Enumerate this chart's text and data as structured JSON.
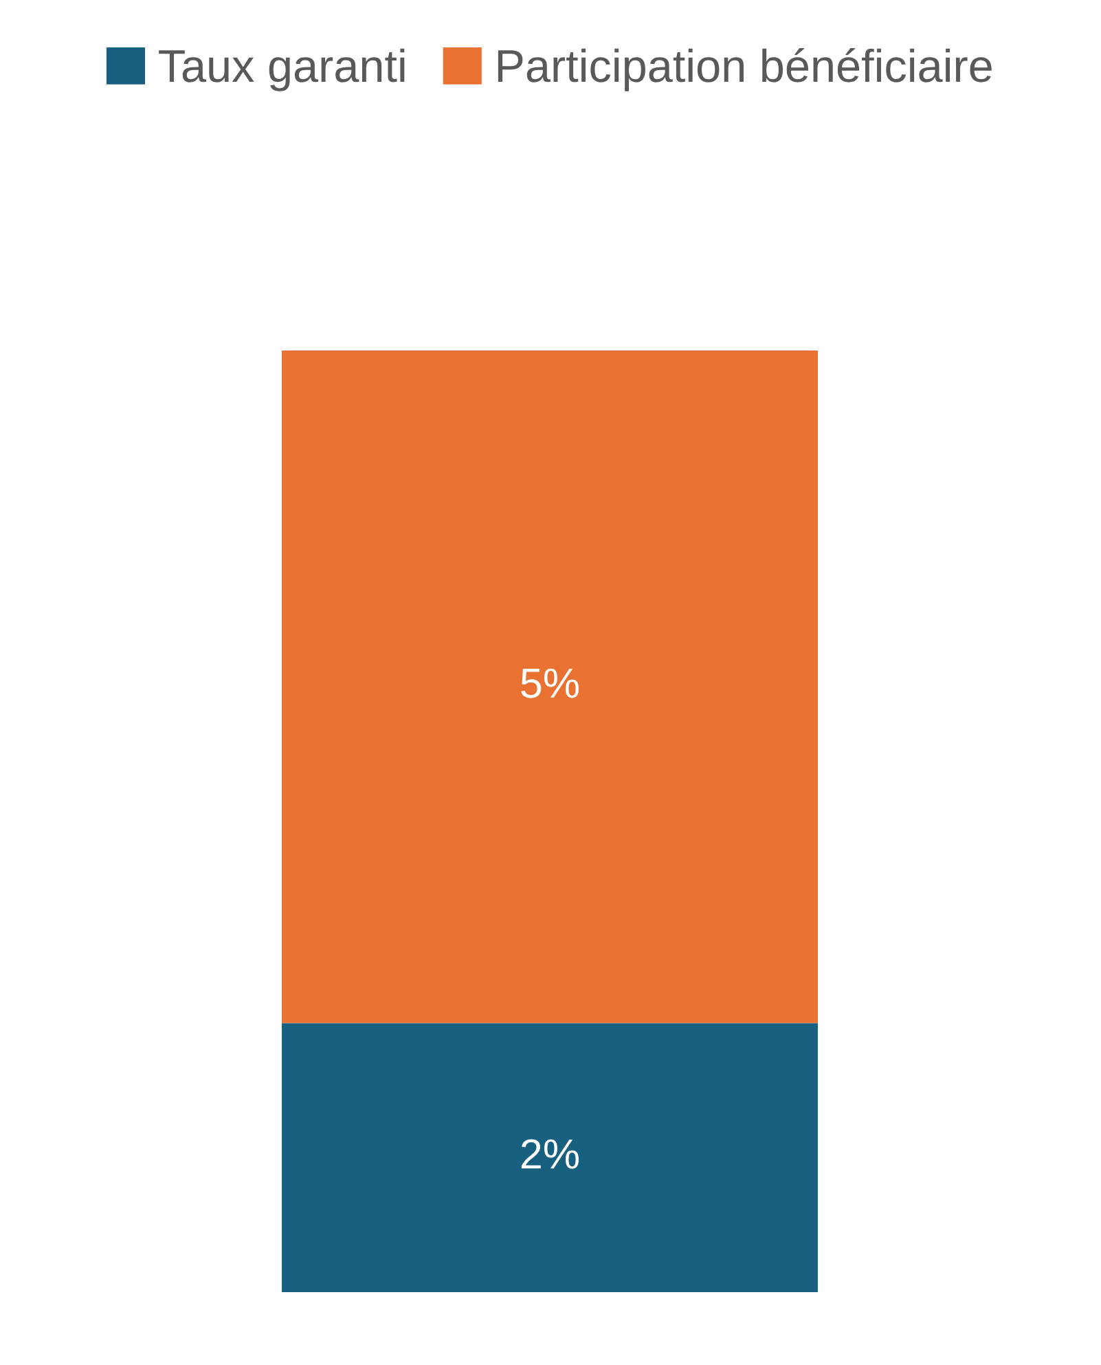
{
  "chart_data": {
    "type": "bar",
    "stacked": true,
    "categories": [
      null
    ],
    "series": [
      {
        "name": "Taux garanti",
        "color": "#17607f",
        "values": [
          2
        ],
        "value_labels": [
          "2%"
        ]
      },
      {
        "name": "Participation bénéficiaire",
        "color": "#e97132",
        "values": [
          5
        ],
        "value_labels": [
          "5%"
        ]
      }
    ],
    "legend": "top",
    "grid": false
  }
}
